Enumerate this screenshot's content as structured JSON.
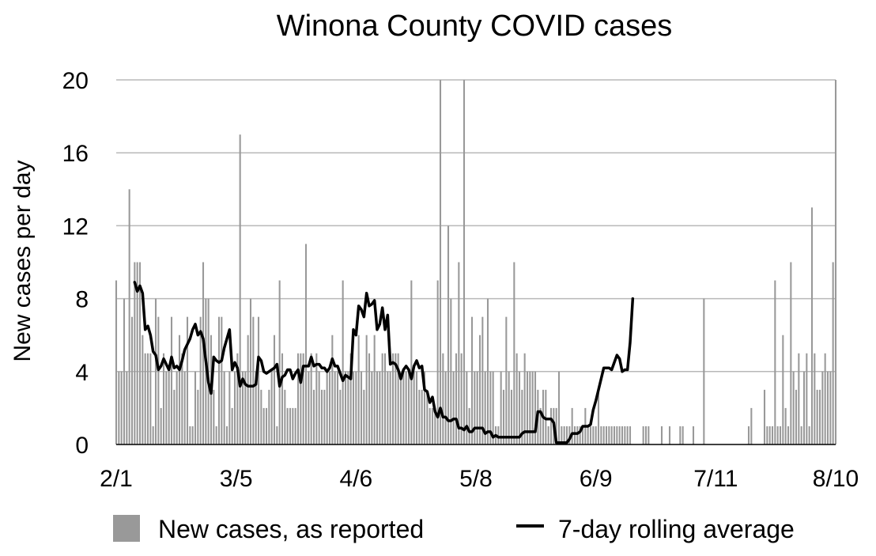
{
  "chart_data": {
    "type": "bar",
    "title": "Winona County COVID cases",
    "xlabel": "",
    "ylabel": "New cases per day",
    "ylim": [
      0,
      20
    ],
    "yticks": [
      "0",
      "4",
      "8",
      "12",
      "16",
      "20"
    ],
    "xticks": [
      "2/1",
      "3/5",
      "4/6",
      "5/8",
      "6/9",
      "7/11",
      "8/10"
    ],
    "x_start": "2/1",
    "x_end": "8/10",
    "grid": true,
    "legend_position": "bottom",
    "series": [
      {
        "name": "New cases, as reported",
        "type": "bar",
        "color": "#999999",
        "values": [
          9,
          4,
          4,
          8,
          4,
          14,
          7,
          10,
          10,
          10,
          6,
          5,
          5,
          5,
          1,
          8,
          7,
          2,
          5,
          4,
          4,
          7,
          3,
          4,
          6,
          5,
          4,
          7,
          1,
          1,
          4,
          3,
          7,
          10,
          8,
          8,
          6,
          3,
          1,
          7,
          7,
          4,
          1,
          4,
          2,
          4,
          5,
          17,
          4,
          4,
          6,
          8,
          7,
          4,
          7,
          3,
          2,
          2,
          3,
          4,
          6,
          1,
          9,
          5,
          3,
          2,
          2,
          2,
          2,
          5,
          5,
          5,
          11,
          4,
          5,
          3,
          5,
          4,
          3,
          3,
          4,
          4,
          6,
          4,
          4,
          3,
          9,
          4,
          4,
          5,
          4,
          4,
          6,
          4,
          3,
          6,
          5,
          4,
          6,
          4,
          4,
          5,
          5,
          4,
          4,
          5,
          5,
          5,
          4,
          4,
          4,
          4,
          9,
          4,
          4,
          3,
          3,
          4,
          3,
          2,
          2,
          2,
          9,
          20,
          5,
          4,
          12,
          8,
          4,
          5,
          10,
          5,
          20,
          4,
          2,
          7,
          4,
          4,
          6,
          7,
          4,
          8,
          4,
          4,
          1,
          1,
          4,
          3,
          7,
          4,
          3,
          10,
          5,
          4,
          3,
          5,
          4,
          4,
          4,
          4,
          3,
          2,
          3,
          3,
          1,
          2,
          2,
          2,
          4,
          1,
          1,
          1,
          1,
          2,
          1,
          1,
          1,
          1,
          2,
          1,
          1,
          1,
          1,
          3,
          1,
          1,
          1,
          1,
          1,
          1,
          1,
          1,
          1,
          1,
          1,
          1,
          0,
          0,
          0,
          0,
          1,
          1,
          1,
          0,
          0,
          0,
          0,
          1,
          0,
          0,
          1,
          0,
          0,
          0,
          1,
          1,
          0,
          0,
          0,
          1,
          0,
          0,
          0,
          8,
          0,
          0,
          0,
          0,
          0,
          0,
          0,
          0,
          0,
          0,
          0,
          0,
          0,
          0,
          0,
          0,
          1,
          2,
          0,
          0,
          0,
          0,
          3,
          1,
          1,
          1,
          9,
          1,
          1,
          6,
          2,
          1,
          10,
          4,
          3,
          5,
          1,
          4,
          5,
          1,
          13,
          5,
          3,
          3,
          4,
          5,
          4,
          4,
          10,
          20
        ]
      },
      {
        "name": "7-day rolling average",
        "type": "line",
        "color": "#000000",
        "start_index": 7,
        "values": [
          8.9,
          8.4,
          8.7,
          8.3,
          6.3,
          6.5,
          6.0,
          5.1,
          4.9,
          4.1,
          4.3,
          4.7,
          4.4,
          4.1,
          4.8,
          4.2,
          4.3,
          4.1,
          4.6,
          5.2,
          5.5,
          5.8,
          6.3,
          6.6,
          6.0,
          6.2,
          5.8,
          4.6,
          3.4,
          2.8,
          4.8,
          4.6,
          4.5,
          4.6,
          5.3,
          5.8,
          6.3,
          4.1,
          4.5,
          4.2,
          3.2,
          3.6,
          3.3,
          3.2,
          3.2,
          3.2,
          3.3,
          4.8,
          4.6,
          4.0,
          3.9,
          4.0,
          4.1,
          4.2,
          4.4,
          3.2,
          3.7,
          3.8,
          4.1,
          4.1,
          3.6,
          3.9,
          4.1,
          3.4,
          4.3,
          4.3,
          4.3,
          4.8,
          4.3,
          4.4,
          4.4,
          4.2,
          4.2,
          4.0,
          4.2,
          4.7,
          4.3,
          4.3,
          3.9,
          3.5,
          3.8,
          3.7,
          3.6,
          6.3,
          6.0,
          7.6,
          7.4,
          7.0,
          8.3,
          7.6,
          7.7,
          7.9,
          6.3,
          6.6,
          7.5,
          6.3,
          7.1,
          4.4,
          4.5,
          4.4,
          4.1,
          3.6,
          4.1,
          4.3,
          4.1,
          3.6,
          4.3,
          4.6,
          4.2,
          4.3,
          3.0,
          2.9,
          2.3,
          2.6,
          1.8,
          1.5,
          2.0,
          1.5,
          1.5,
          1.3,
          1.3,
          1.4,
          1.4,
          0.9,
          0.9,
          0.8,
          1.0,
          0.7,
          0.7,
          0.9,
          0.9,
          0.9,
          0.9,
          0.6,
          0.7,
          0.7,
          0.4,
          0.5,
          0.4,
          0.4,
          0.4,
          0.4,
          0.4,
          0.4,
          0.4,
          0.4,
          0.4,
          0.6,
          0.7,
          0.7,
          0.7,
          0.7,
          0.7,
          1.8,
          1.8,
          1.5,
          1.4,
          1.4,
          1.4,
          1.2,
          0.1,
          0.1,
          0.1,
          0.1,
          0.1,
          0.3,
          0.6,
          0.6,
          0.6,
          0.7,
          1.0,
          1.0,
          1.0,
          1.1,
          1.9,
          2.4,
          3.0,
          3.6,
          4.2,
          4.2,
          4.2,
          4.1,
          4.5,
          4.9,
          4.7,
          4.0,
          4.1,
          4.1,
          5.6,
          8.0
        ]
      }
    ]
  }
}
